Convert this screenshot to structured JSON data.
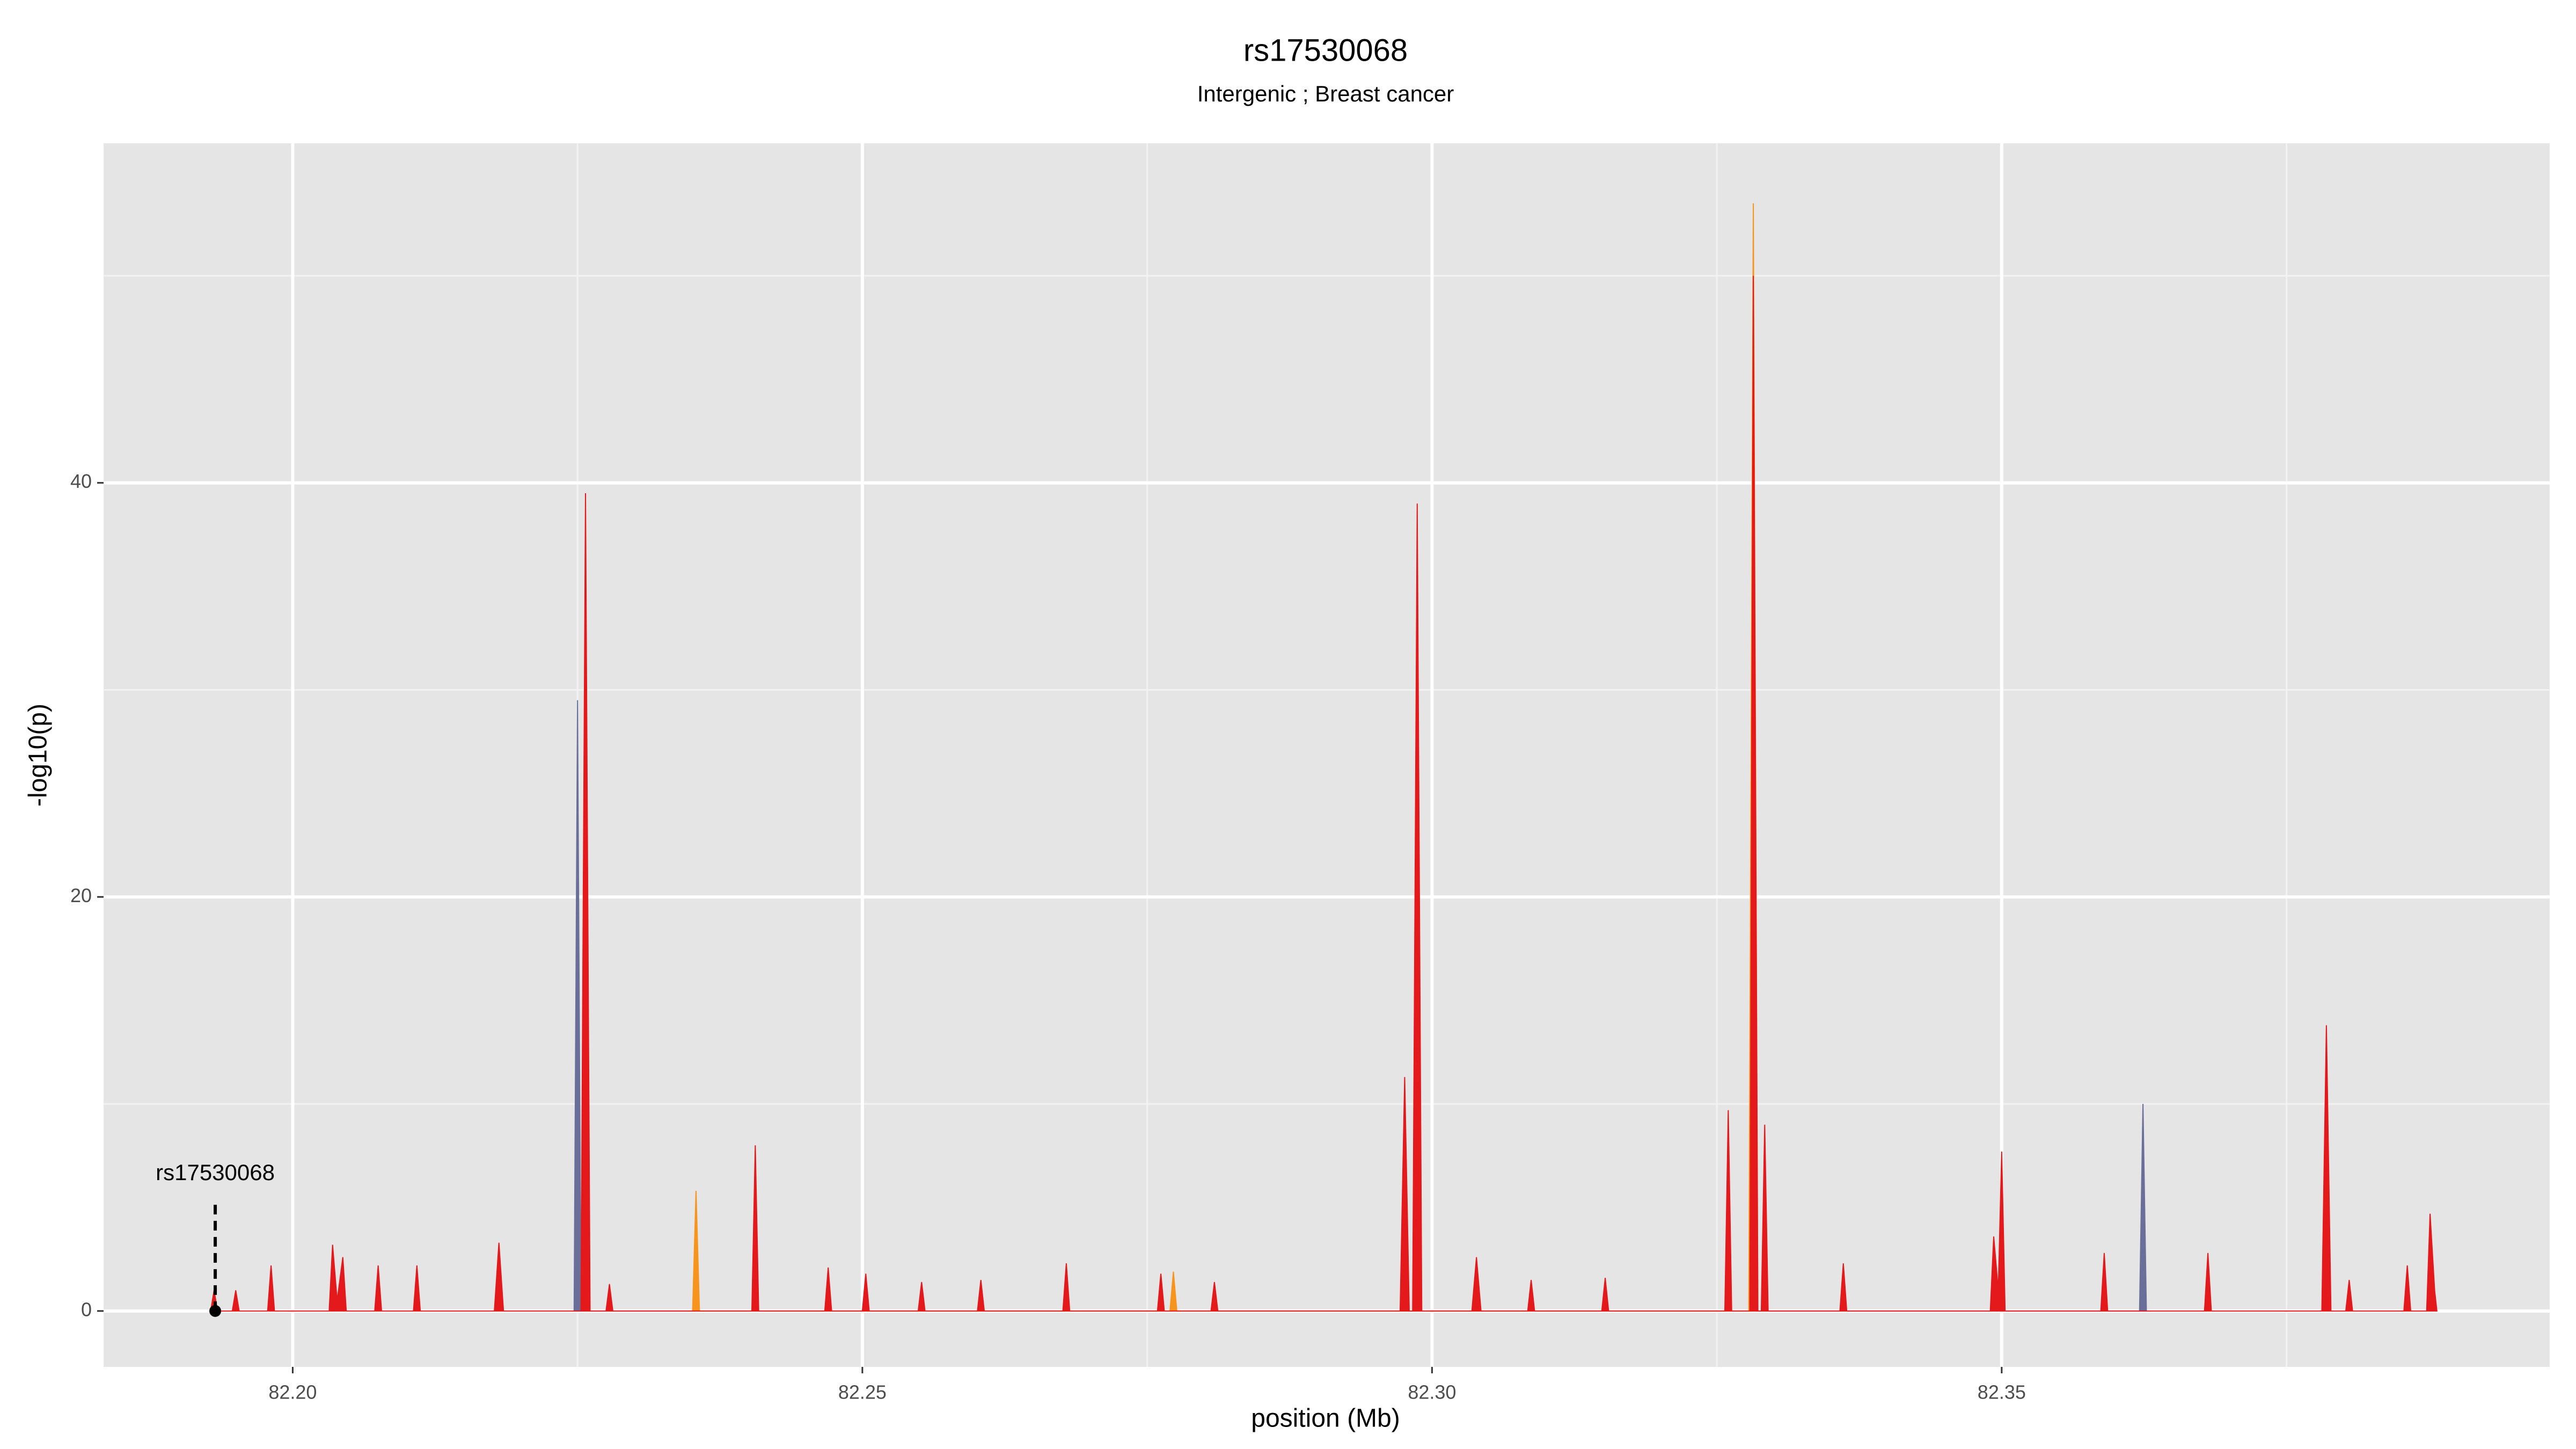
{
  "chart_data": {
    "type": "area",
    "title": "rs17530068",
    "subtitle": "Intergenic ; Breast cancer",
    "xlabel": "position (Mb)",
    "ylabel": "-log10(p)",
    "xlim": [
      82.1834,
      82.3981
    ],
    "ylim": [
      -2.7,
      56.4
    ],
    "xticks": [
      {
        "value": 82.2,
        "label": "82.20"
      },
      82.25,
      {
        "value": 82.3,
        "label": "82.30"
      },
      82.35
    ],
    "yticks": [
      0,
      20,
      40
    ],
    "x_minor_ticks": [
      82.225,
      82.275,
      82.325,
      82.375
    ],
    "y_minor_ticks": [
      10,
      30,
      50
    ],
    "grid": true,
    "annotation": {
      "text": "rs17530068",
      "x": 82.1932,
      "y": 0
    },
    "series": [
      {
        "color": "#6a6f9a",
        "x": [
          82.2247,
          82.225,
          82.2253,
          82.3621,
          82.3624,
          82.3627
        ],
        "values": [
          0,
          29.5,
          0,
          0,
          10,
          0
        ]
      },
      {
        "color": "#f7941d",
        "x": [
          82.2351,
          82.2354,
          82.2357,
          82.277,
          82.2773,
          82.2776,
          82.3278,
          82.3282,
          82.3286
        ],
        "values": [
          0,
          5.8,
          0,
          0,
          1.9,
          0,
          0,
          53.5,
          0
        ]
      },
      {
        "color": "#e3191c",
        "x": [
          82.1928,
          82.1931,
          82.1934,
          82.1947,
          82.195,
          82.1953,
          82.1978,
          82.1981,
          82.1984,
          82.2032,
          82.2035,
          82.2039,
          82.2044,
          82.2047,
          82.2072,
          82.2075,
          82.2078,
          82.2106,
          82.2109,
          82.2112,
          82.2177,
          82.2181,
          82.2185,
          82.2253,
          82.2257,
          82.2261,
          82.2275,
          82.2278,
          82.2281,
          82.2403,
          82.2406,
          82.2409,
          82.2467,
          82.247,
          82.2473,
          82.25,
          82.2503,
          82.2506,
          82.2549,
          82.2552,
          82.2555,
          82.2601,
          82.2604,
          82.2607,
          82.2676,
          82.2679,
          82.2682,
          82.2759,
          82.2762,
          82.2765,
          82.2806,
          82.2809,
          82.2812,
          82.2972,
          82.2976,
          82.298,
          82.2983,
          82.2987,
          82.2991,
          82.3035,
          82.3039,
          82.3043,
          82.3084,
          82.3087,
          82.309,
          82.3149,
          82.3152,
          82.3155,
          82.3257,
          82.326,
          82.3263,
          82.3279,
          82.3282,
          82.3286,
          82.3289,
          82.3292,
          82.3295,
          82.3358,
          82.3361,
          82.3364,
          82.349,
          82.3493,
          82.3497,
          82.35,
          82.3503,
          82.3587,
          82.359,
          82.3593,
          82.3678,
          82.3681,
          82.3684,
          82.3781,
          82.3785,
          82.3789,
          82.3802,
          82.3805,
          82.3808,
          82.3853,
          82.3856,
          82.3859,
          82.3873,
          82.3876,
          82.388,
          82.3882
        ],
        "values": [
          0,
          1,
          0,
          0,
          1,
          0,
          0,
          2.2,
          0,
          0,
          3.2,
          0.5,
          2.6,
          0,
          0,
          2.2,
          0,
          0,
          2.2,
          0,
          0,
          3.3,
          0,
          0,
          39.5,
          0,
          0,
          1.3,
          0,
          0,
          8,
          0,
          0,
          2.1,
          0,
          0,
          1.8,
          0,
          0,
          1.4,
          0,
          0,
          1.5,
          0,
          0,
          2.3,
          0,
          0,
          1.8,
          0,
          0,
          1.4,
          0,
          0,
          11.3,
          0,
          0,
          39,
          0,
          0,
          2.6,
          0,
          0,
          1.5,
          0,
          0,
          1.6,
          0,
          0,
          9.7,
          0,
          0,
          50,
          0,
          0,
          9,
          0,
          0,
          2.3,
          0,
          0,
          3.6,
          1,
          7.7,
          0,
          0,
          2.8,
          0,
          0,
          2.8,
          0,
          0,
          13.8,
          0,
          0,
          1.5,
          0,
          0,
          2.2,
          0,
          0,
          4.7,
          1,
          0
        ]
      }
    ]
  }
}
